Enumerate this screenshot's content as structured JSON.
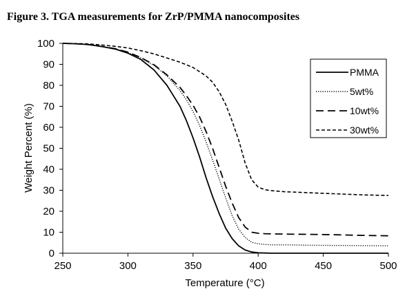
{
  "figure_title": "Figure 3. TGA measurements for ZrP/PMMA nanocomposites",
  "chart_data": {
    "type": "line",
    "title": "Figure 3. TGA measurements for ZrP/PMMA nanocomposites",
    "xlabel": "Temperature (°C)",
    "ylabel": "Weight Percent (%)",
    "xlim": [
      250,
      500
    ],
    "ylim": [
      0,
      100
    ],
    "xticks": [
      250,
      300,
      350,
      400,
      450,
      500
    ],
    "yticks": [
      0,
      10,
      20,
      30,
      40,
      50,
      60,
      70,
      80,
      90,
      100
    ],
    "grid": false,
    "legend_position": "top-right",
    "series": [
      {
        "name": "PMMA",
        "style": "solid",
        "color": "#000000",
        "x": [
          250,
          260,
          270,
          280,
          290,
          300,
          310,
          320,
          330,
          340,
          345,
          350,
          355,
          360,
          365,
          370,
          375,
          380,
          385,
          390,
          395,
          400,
          405,
          410,
          420,
          440,
          460,
          480,
          500
        ],
        "y": [
          100,
          99.8,
          99.4,
          98.5,
          97.3,
          95.3,
          92.3,
          87.3,
          80,
          70,
          63,
          55,
          46,
          36,
          27,
          19,
          12,
          7,
          3.5,
          1.5,
          0.6,
          0.2,
          0.1,
          0,
          0,
          0,
          0,
          0,
          0
        ]
      },
      {
        "name": "5wt%",
        "style": "dotted",
        "color": "#000000",
        "x": [
          250,
          260,
          270,
          280,
          290,
          300,
          310,
          320,
          330,
          340,
          345,
          350,
          355,
          360,
          365,
          370,
          375,
          380,
          385,
          390,
          395,
          400,
          405,
          410,
          420,
          440,
          460,
          480,
          500
        ],
        "y": [
          100,
          99.8,
          99.4,
          98.5,
          97.5,
          95.6,
          93,
          89.5,
          84.5,
          77.5,
          73,
          67.5,
          61,
          53,
          44.5,
          35.5,
          26.5,
          18,
          11.5,
          7.5,
          5.2,
          4.5,
          4.2,
          4,
          4,
          3.8,
          3.7,
          3.6,
          3.5
        ]
      },
      {
        "name": "10wt%",
        "style": "dashed",
        "color": "#000000",
        "x": [
          250,
          260,
          270,
          280,
          290,
          300,
          310,
          320,
          330,
          340,
          345,
          350,
          355,
          360,
          365,
          370,
          375,
          380,
          385,
          390,
          395,
          400,
          405,
          410,
          420,
          440,
          460,
          480,
          500
        ],
        "y": [
          100,
          99.8,
          99.4,
          98.5,
          97.5,
          95.8,
          93.2,
          89.8,
          85,
          79,
          75,
          70.5,
          65,
          58,
          50,
          41,
          32,
          24,
          17,
          12.5,
          10,
          9.5,
          9.3,
          9.2,
          9.1,
          9,
          8.8,
          8.5,
          8.3
        ]
      },
      {
        "name": "30wt%",
        "style": "short-dashed",
        "color": "#000000",
        "x": [
          250,
          260,
          270,
          280,
          290,
          300,
          310,
          320,
          330,
          340,
          350,
          360,
          365,
          370,
          375,
          380,
          385,
          390,
          395,
          400,
          405,
          410,
          420,
          440,
          460,
          480,
          500
        ],
        "y": [
          100,
          99.9,
          99.7,
          99.2,
          98.6,
          97.8,
          96.5,
          95,
          93,
          91,
          88.5,
          84.5,
          81.5,
          77,
          71,
          63,
          54,
          43,
          35,
          31.5,
          30.3,
          29.8,
          29.3,
          28.8,
          28.3,
          27.8,
          27.5
        ]
      }
    ]
  }
}
